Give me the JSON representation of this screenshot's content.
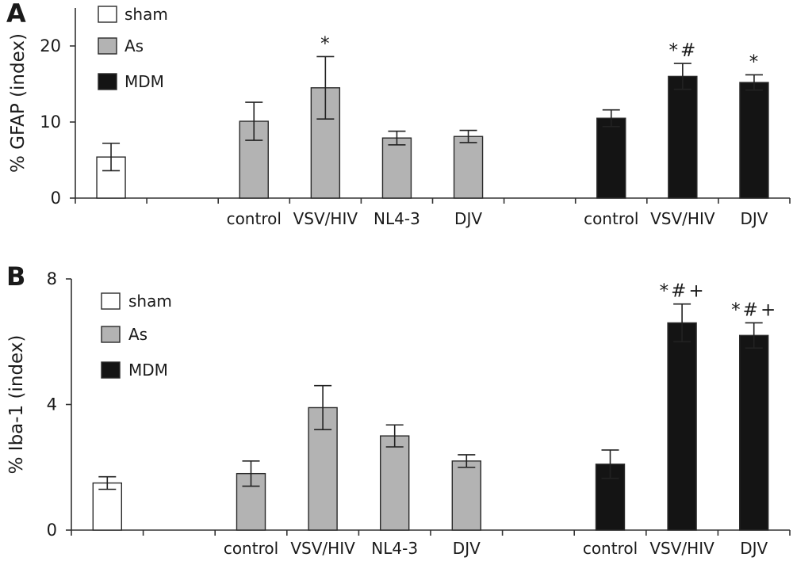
{
  "chart_data": [
    {
      "panel_label": "A",
      "type": "bar",
      "ylabel": "% GFAP (index)",
      "ylim": [
        0,
        25
      ],
      "yticks": [
        0,
        10,
        20
      ],
      "grid": false,
      "legend_position": "top-left",
      "series": [
        {
          "name": "sham",
          "color": "#ffffff",
          "categories": [
            ""
          ],
          "values": [
            5.4
          ],
          "errors": [
            1.8
          ],
          "marks": [
            ""
          ]
        },
        {
          "name": "As",
          "color": "#b3b3b3",
          "categories": [
            "control",
            "VSV/HIV",
            "NL4-3",
            "DJV"
          ],
          "values": [
            10.1,
            14.5,
            7.9,
            8.1
          ],
          "errors": [
            2.5,
            4.1,
            0.9,
            0.8
          ],
          "marks": [
            "",
            "*",
            "",
            ""
          ]
        },
        {
          "name": "MDM",
          "color": "#141414",
          "categories": [
            "control",
            "VSV/HIV",
            "DJV"
          ],
          "values": [
            10.5,
            16.0,
            15.2
          ],
          "errors": [
            1.1,
            1.7,
            1.0
          ],
          "marks": [
            "",
            "*#",
            "*"
          ]
        }
      ]
    },
    {
      "panel_label": "B",
      "type": "bar",
      "ylabel": "% Iba-1 (index)",
      "ylim": [
        0,
        8
      ],
      "yticks": [
        0,
        4,
        8
      ],
      "grid": false,
      "legend_position": "top-left",
      "series": [
        {
          "name": "sham",
          "color": "#ffffff",
          "categories": [
            ""
          ],
          "values": [
            1.5
          ],
          "errors": [
            0.2
          ],
          "marks": [
            ""
          ]
        },
        {
          "name": "As",
          "color": "#b3b3b3",
          "categories": [
            "control",
            "VSV/HIV",
            "NL4-3",
            "DJV"
          ],
          "values": [
            1.8,
            3.9,
            3.0,
            2.2
          ],
          "errors": [
            0.4,
            0.7,
            0.35,
            0.2
          ],
          "marks": [
            "",
            "",
            "",
            ""
          ]
        },
        {
          "name": "MDM",
          "color": "#141414",
          "categories": [
            "control",
            "VSV/HIV",
            "DJV"
          ],
          "values": [
            2.1,
            6.6,
            6.2
          ],
          "errors": [
            0.45,
            0.6,
            0.4
          ],
          "marks": [
            "",
            "*#+",
            "*#+"
          ]
        }
      ]
    }
  ]
}
